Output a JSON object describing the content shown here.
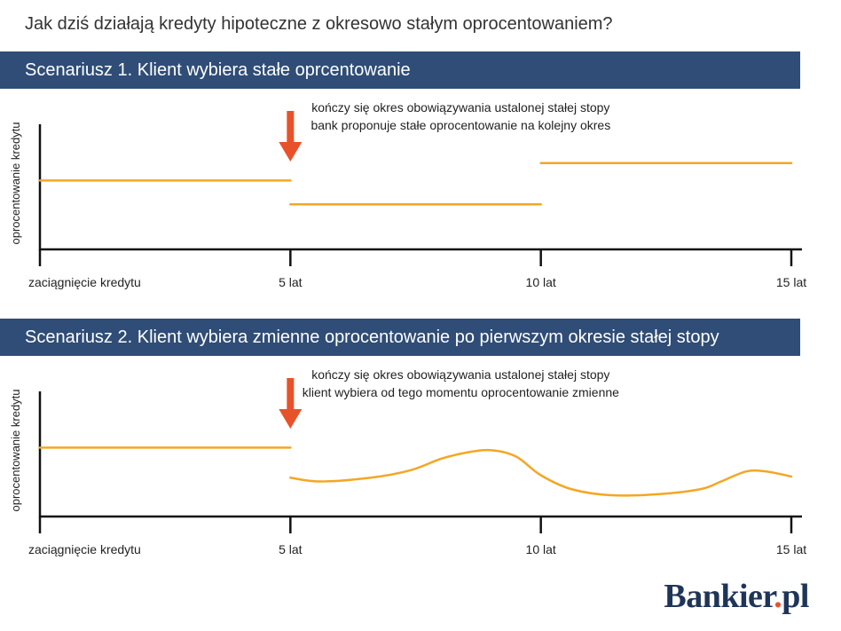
{
  "title": "Jak dziś działają kredyty hipoteczne z okresowo stałym oprocentowaniem?",
  "logo": {
    "text": "Bankier",
    "dot": ".",
    "suffix": "pl"
  },
  "colors": {
    "banner": "#2f4d76",
    "line": "#f5a623",
    "arrow": "#e8522a",
    "axis": "#111111"
  },
  "chart_data": [
    {
      "type": "line",
      "banner": "Scenariusz 1. Klient wybiera stałe oprcentowanie",
      "title": "Scenariusz 1. Klient wybiera stałe oprcentowanie",
      "ylabel": "oprocentowanie kredytu",
      "xlabel": "",
      "x_ticks": [
        {
          "x": 0,
          "label": "zaciągnięcie kredytu"
        },
        {
          "x": 5,
          "label": "5 lat"
        },
        {
          "x": 10,
          "label": "10 lat"
        },
        {
          "x": 15,
          "label": "15 lat"
        }
      ],
      "xlim": [
        0,
        15
      ],
      "ylim": [
        0,
        1
      ],
      "y_ticks_labeled": false,
      "annotation": {
        "x": 5,
        "lines": [
          "kończy się okres obowiązywania ustalonej stałej stopy",
          "bank proponuje stałe oprocentowanie na kolejny okres"
        ]
      },
      "segments": [
        {
          "points": [
            [
              0,
              0.55
            ],
            [
              5,
              0.55
            ]
          ]
        },
        {
          "points": [
            [
              5,
              0.36
            ],
            [
              10,
              0.36
            ]
          ]
        },
        {
          "points": [
            [
              10,
              0.69
            ],
            [
              15,
              0.69
            ]
          ]
        }
      ]
    },
    {
      "type": "line",
      "banner": "Scenariusz 2. Klient wybiera zmienne oprocentowanie po pierwszym okresie stałej stopy",
      "title": "Scenariusz 2. Klient wybiera zmienne oprocentowanie po pierwszym okresie stałej stopy",
      "ylabel": "oprocentowanie kredytu",
      "xlabel": "",
      "x_ticks": [
        {
          "x": 0,
          "label": "zaciągnięcie kredytu"
        },
        {
          "x": 5,
          "label": "5 lat"
        },
        {
          "x": 10,
          "label": "10 lat"
        },
        {
          "x": 15,
          "label": "15 lat"
        }
      ],
      "xlim": [
        0,
        15
      ],
      "ylim": [
        0,
        1
      ],
      "y_ticks_labeled": false,
      "annotation": {
        "x": 5,
        "lines": [
          "kończy się okres obowiązywania ustalonej stałej stopy",
          "klient wybiera od tego momentu oprocentowanie zmienne"
        ]
      },
      "segments": [
        {
          "points": [
            [
              0,
              0.55
            ],
            [
              5,
              0.55
            ]
          ]
        },
        {
          "smooth": true,
          "points": [
            [
              5,
              0.31
            ],
            [
              5.6,
              0.28
            ],
            [
              6.6,
              0.31
            ],
            [
              7.4,
              0.37
            ],
            [
              8.0,
              0.46
            ],
            [
              8.5,
              0.51
            ],
            [
              9.0,
              0.53
            ],
            [
              9.5,
              0.48
            ],
            [
              10.0,
              0.33
            ],
            [
              10.6,
              0.22
            ],
            [
              11.4,
              0.17
            ],
            [
              12.4,
              0.18
            ],
            [
              13.2,
              0.22
            ],
            [
              13.6,
              0.28
            ],
            [
              14.1,
              0.36
            ],
            [
              14.5,
              0.36
            ],
            [
              15.0,
              0.32
            ]
          ]
        }
      ]
    }
  ]
}
